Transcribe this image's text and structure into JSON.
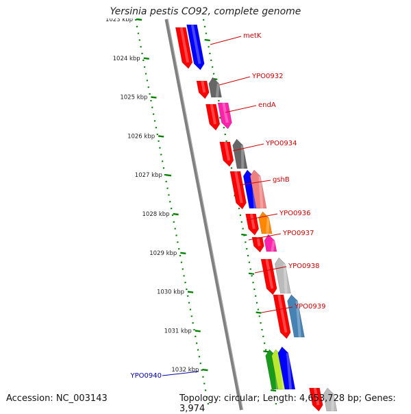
{
  "title": "Yersinia pestis CO92, complete genome",
  "footer": {
    "accession": "Accession: NC_003143",
    "summary": "Topology: circular; Length: 4,653,728 bp; Genes: 3,974"
  },
  "ticks": [
    "1023 kbp",
    "1024 kbp",
    "1025 kbp",
    "1026 kbp",
    "1027 kbp",
    "1028 kbp",
    "1029 kbp",
    "1030 kbp",
    "1031 kbp",
    "1032 kbp"
  ],
  "colors": {
    "red": "#ff0000",
    "blue": "#0000ff",
    "dark_gray": "#666666",
    "magenta": "#ff22aa",
    "salmon": "#f08080",
    "orange": "#ff8800",
    "light_gray": "#bbbbbb",
    "steel_blue": "#4682b4",
    "green": "#1a9a1a",
    "lime": "#b8e830",
    "backbone": "#808080",
    "tick": "#008000",
    "label_red": "#cc0000",
    "label_blue": "#0000aa"
  },
  "gene_labels": [
    {
      "name": "metK",
      "color": "red"
    },
    {
      "name": "YPO0932",
      "color": "red"
    },
    {
      "name": "endA",
      "color": "red"
    },
    {
      "name": "YPO0934",
      "color": "red"
    },
    {
      "name": "gshB",
      "color": "red"
    },
    {
      "name": "YPO0936",
      "color": "red"
    },
    {
      "name": "YPO0937",
      "color": "red"
    },
    {
      "name": "YPO0938",
      "color": "red"
    },
    {
      "name": "YPO0939",
      "color": "red"
    },
    {
      "name": "YPO0940",
      "color": "blue"
    }
  ]
}
